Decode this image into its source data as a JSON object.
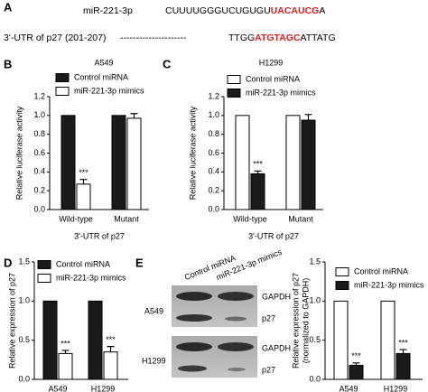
{
  "panel_labels": [
    "A",
    "B",
    "C",
    "D",
    "E"
  ],
  "sequence": {
    "mirna_name": "miR-221-3p",
    "mirna_parts": [
      "CUUUUGGGUCUGUGU",
      "UACAUCG",
      "A"
    ],
    "utr_name": "3'-UTR of p27 (201-207)",
    "dashes": "---------------------",
    "utr_parts": [
      "TTGG",
      "ATGTAGC",
      "ATTATG"
    ]
  },
  "blot": {
    "lanes": [
      "Control miRNA",
      "miR-221-3p mimics"
    ],
    "cell_lines": [
      "A549",
      "H1299"
    ],
    "bands": [
      "GAPDH",
      "p27"
    ]
  },
  "chart_data": [
    {
      "type": "bar",
      "title": "A549",
      "ylabel": "Relative luciferase activity",
      "xlabel": "3'-UTR of p27",
      "categories": [
        "Wild-type",
        "Mutant"
      ],
      "edgecolor": "#000000",
      "series": [
        {
          "name": "Control miRNA",
          "color": "#1a1a1a",
          "values": [
            1,
            1
          ],
          "errors": [
            null,
            null
          ],
          "annotations": [
            null,
            null
          ]
        },
        {
          "name": "miR-221-3p mimics",
          "color": "#ffffff",
          "values": [
            0.27,
            0.97
          ],
          "errors": [
            0.05,
            0.05
          ],
          "annotations": [
            "***",
            null
          ]
        }
      ],
      "ylim": [
        0,
        1.2
      ],
      "yticks": [
        {
          "value": 0,
          "label": "0.0"
        },
        0.2,
        0.4,
        0.6,
        0.8,
        {
          "value": 1,
          "label": "1.0"
        },
        1.2
      ]
    },
    {
      "type": "bar",
      "title": "H1299",
      "ylabel": "Relative luciferase activity",
      "xlabel": "3'-UTR of p27",
      "categories": [
        "Wild-type",
        "Mutant"
      ],
      "edgecolor": "#000000",
      "series": [
        {
          "name": "Control miRNA",
          "color": "#ffffff",
          "values": [
            1,
            1
          ],
          "errors": [
            null,
            null
          ],
          "annotations": [
            null,
            null
          ]
        },
        {
          "name": "miR-221-3p mimics",
          "color": "#1a1a1a",
          "values": [
            0.38,
            0.95
          ],
          "errors": [
            0.03,
            0.06
          ],
          "annotations": [
            "***",
            null
          ]
        }
      ],
      "ylim": [
        0,
        1.2
      ],
      "yticks": [
        {
          "value": 0,
          "label": "0.0"
        },
        0.2,
        0.4,
        0.6,
        0.8,
        {
          "value": 1,
          "label": "1.0"
        },
        1.2
      ]
    },
    {
      "type": "bar",
      "ylabel": "Relative expression of p27",
      "categories": [
        "A549",
        "H1299"
      ],
      "edgecolor": "#000000",
      "series": [
        {
          "name": "Control miRNA",
          "color": "#1a1a1a",
          "values": [
            1,
            1
          ],
          "errors": [
            null,
            null
          ],
          "annotations": [
            null,
            null
          ]
        },
        {
          "name": "miR-221-3p mimics",
          "color": "#ffffff",
          "values": [
            0.33,
            0.35
          ],
          "errors": [
            0.04,
            0.07
          ],
          "annotations": [
            "***",
            "***"
          ]
        }
      ],
      "ylim": [
        0,
        1.5
      ],
      "yticks": [
        {
          "value": 0,
          "label": "0.0"
        },
        0.5,
        {
          "value": 1,
          "label": "1.0"
        },
        1.5
      ]
    },
    {
      "type": "bar",
      "ylabel": [
        "Relative expression of p27",
        "(normalized to GAPDH)"
      ],
      "categories": [
        "A549",
        "H1299"
      ],
      "edgecolor": "#000000",
      "series": [
        {
          "name": "Control miRNA",
          "color": "#ffffff",
          "values": [
            1,
            1
          ],
          "errors": [
            null,
            null
          ],
          "annotations": [
            null,
            null
          ]
        },
        {
          "name": "miR-221-3p mimics",
          "color": "#1a1a1a",
          "values": [
            0.18,
            0.33
          ],
          "errors": [
            0.03,
            0.05
          ],
          "annotations": [
            "***",
            "***"
          ]
        }
      ],
      "ylim": [
        0,
        1.5
      ],
      "yticks": [
        {
          "value": 0,
          "label": "0.0"
        },
        0.5,
        {
          "value": 1,
          "label": "1.0"
        },
        1.5
      ]
    }
  ]
}
